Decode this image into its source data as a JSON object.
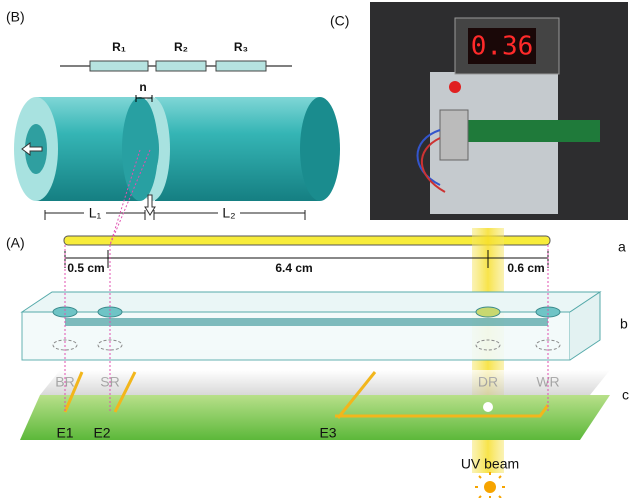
{
  "panel_b": {
    "label": "(B)",
    "resistors": [
      "R₁",
      "R₂",
      "R₃"
    ],
    "gap": "n",
    "lengths": [
      "L₁",
      "L₂"
    ]
  },
  "panel_c": {
    "label": "(C)",
    "display": "0.36"
  },
  "panel_a": {
    "label": "(A)",
    "rows": [
      "a",
      "b",
      "c"
    ],
    "dimensions": [
      "0.5 cm",
      "6.4 cm",
      "0.6 cm"
    ],
    "reservoirs": [
      "BR",
      "SR",
      "DR",
      "WR"
    ],
    "electrodes": [
      "E1",
      "E2",
      "E3"
    ],
    "beam": "UV beam"
  }
}
